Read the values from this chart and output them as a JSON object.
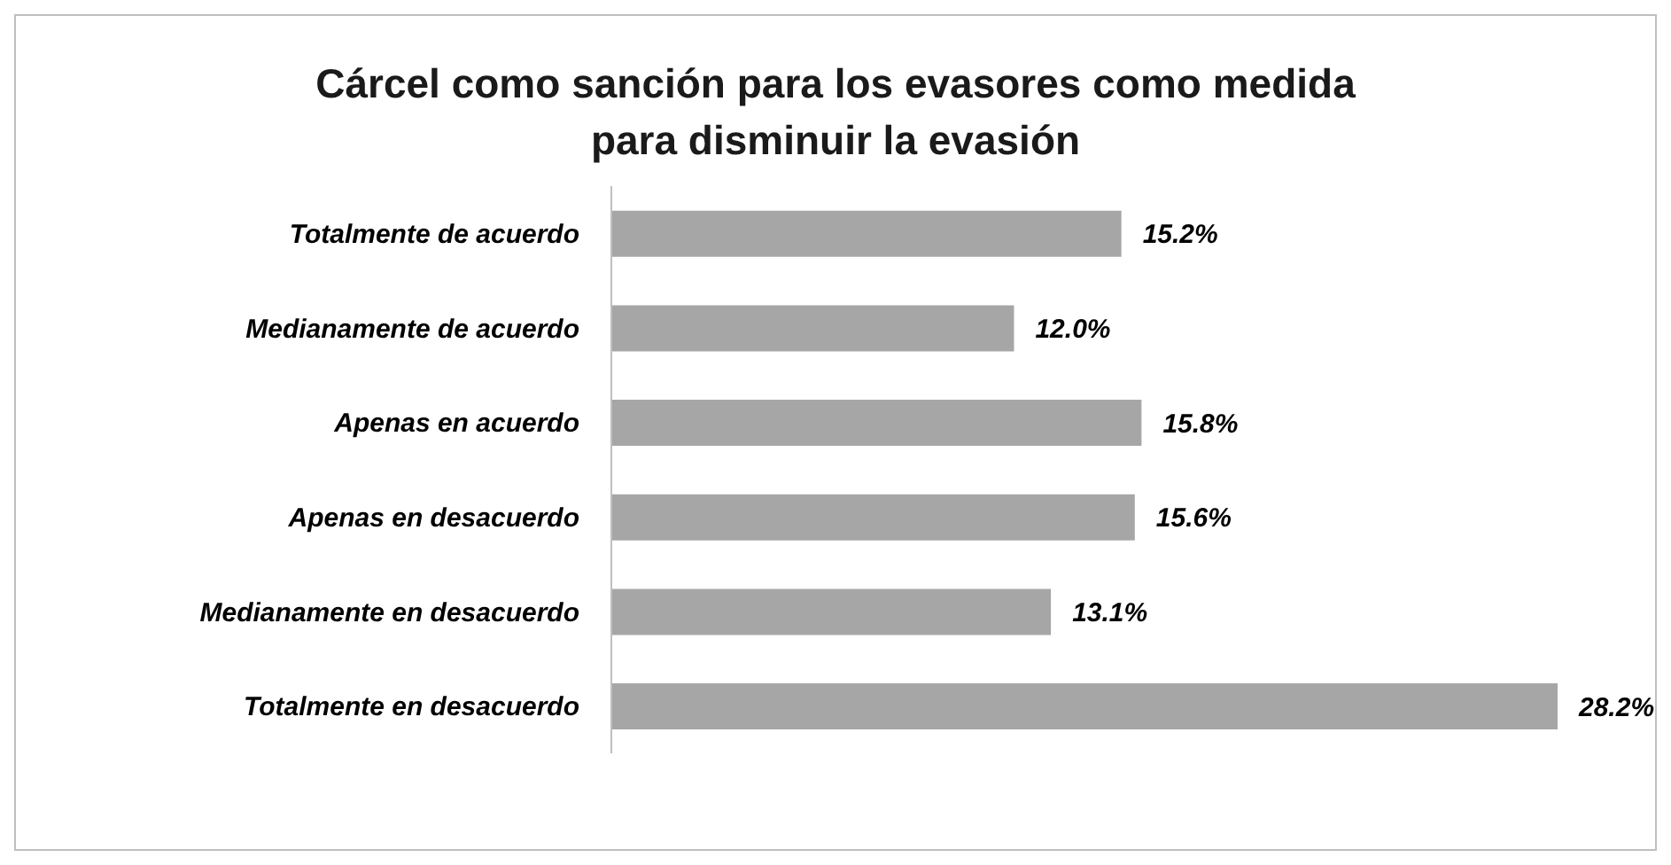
{
  "chart_data": {
    "type": "bar",
    "orientation": "horizontal",
    "title": "Cárcel como sanción para los evasores como medida para disminuir la evasión",
    "categories": [
      "Totalmente de acuerdo",
      "Medianamente de acuerdo",
      "Apenas en acuerdo",
      "Apenas en desacuerdo",
      "Medianamente en desacuerdo",
      "Totalmente en desacuerdo"
    ],
    "values": [
      15.2,
      12.0,
      15.8,
      15.6,
      13.1,
      28.2
    ],
    "value_labels": [
      "15.2%",
      "12.0%",
      "15.8%",
      "15.6%",
      "13.1%",
      "28.2%"
    ],
    "color": "#a6a6a6",
    "grid": false,
    "legend": false
  }
}
